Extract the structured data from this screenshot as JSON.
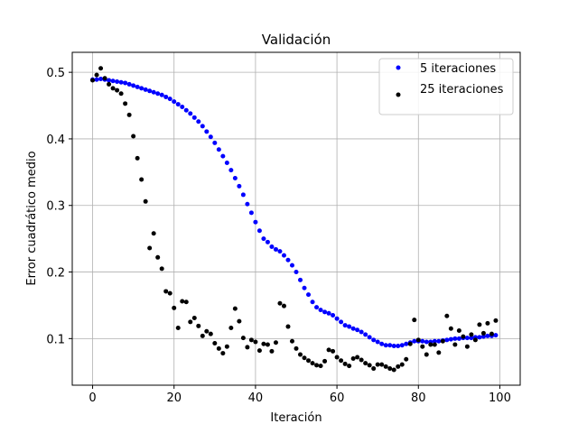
{
  "chart_data": {
    "type": "scatter",
    "title": "Validación",
    "xlabel": "Iteración",
    "ylabel": "Error cuadrático medio",
    "xlim": [
      -5,
      105
    ],
    "ylim": [
      0.03,
      0.53
    ],
    "xticks": [
      0,
      20,
      40,
      60,
      80,
      100
    ],
    "yticks": [
      0.1,
      0.2,
      0.3,
      0.4,
      0.5
    ],
    "grid": true,
    "legend": "top-right",
    "series": [
      {
        "name": "5 iteraciones",
        "color": "#0000ff",
        "x": [
          0,
          1,
          2,
          3,
          4,
          5,
          6,
          7,
          8,
          9,
          10,
          11,
          12,
          13,
          14,
          15,
          16,
          17,
          18,
          19,
          20,
          21,
          22,
          23,
          24,
          25,
          26,
          27,
          28,
          29,
          30,
          31,
          32,
          33,
          34,
          35,
          36,
          37,
          38,
          39,
          40,
          41,
          42,
          43,
          44,
          45,
          46,
          47,
          48,
          49,
          50,
          51,
          52,
          53,
          54,
          55,
          56,
          57,
          58,
          59,
          60,
          61,
          62,
          63,
          64,
          65,
          66,
          67,
          68,
          69,
          70,
          71,
          72,
          73,
          74,
          75,
          76,
          77,
          78,
          79,
          80,
          81,
          82,
          83,
          84,
          85,
          86,
          87,
          88,
          89,
          90,
          91,
          92,
          93,
          94,
          95,
          96,
          97,
          98,
          99
        ],
        "y": [
          0.489,
          0.489,
          0.49,
          0.489,
          0.488,
          0.487,
          0.486,
          0.485,
          0.484,
          0.482,
          0.48,
          0.478,
          0.476,
          0.474,
          0.472,
          0.47,
          0.468,
          0.466,
          0.463,
          0.46,
          0.456,
          0.452,
          0.448,
          0.443,
          0.438,
          0.432,
          0.426,
          0.419,
          0.411,
          0.403,
          0.394,
          0.384,
          0.374,
          0.364,
          0.353,
          0.341,
          0.329,
          0.316,
          0.302,
          0.289,
          0.275,
          0.262,
          0.25,
          0.245,
          0.238,
          0.234,
          0.231,
          0.225,
          0.218,
          0.21,
          0.2,
          0.188,
          0.176,
          0.166,
          0.155,
          0.147,
          0.143,
          0.14,
          0.138,
          0.135,
          0.13,
          0.125,
          0.12,
          0.118,
          0.115,
          0.113,
          0.11,
          0.106,
          0.102,
          0.098,
          0.095,
          0.092,
          0.09,
          0.09,
          0.089,
          0.089,
          0.09,
          0.092,
          0.094,
          0.096,
          0.096,
          0.096,
          0.095,
          0.095,
          0.096,
          0.096,
          0.097,
          0.098,
          0.099,
          0.1,
          0.1,
          0.101,
          0.101,
          0.101,
          0.102,
          0.102,
          0.103,
          0.104,
          0.104,
          0.105
        ]
      },
      {
        "name": "25 iteraciones",
        "color": "#000000",
        "x": [
          0,
          1,
          2,
          3,
          4,
          5,
          6,
          7,
          8,
          9,
          10,
          11,
          12,
          13,
          14,
          15,
          16,
          17,
          18,
          19,
          20,
          21,
          22,
          23,
          24,
          25,
          26,
          27,
          28,
          29,
          30,
          31,
          32,
          33,
          34,
          35,
          36,
          37,
          38,
          39,
          40,
          41,
          42,
          43,
          44,
          45,
          46,
          47,
          48,
          49,
          50,
          51,
          52,
          53,
          54,
          55,
          56,
          57,
          58,
          59,
          60,
          61,
          62,
          63,
          64,
          65,
          66,
          67,
          68,
          69,
          70,
          71,
          72,
          73,
          74,
          75,
          76,
          77,
          78,
          79,
          80,
          81,
          82,
          83,
          84,
          85,
          86,
          87,
          88,
          89,
          90,
          91,
          92,
          93,
          94,
          95,
          96,
          97,
          98,
          99
        ],
        "y": [
          0.488,
          0.496,
          0.506,
          0.491,
          0.482,
          0.476,
          0.473,
          0.468,
          0.453,
          0.436,
          0.404,
          0.371,
          0.339,
          0.306,
          0.236,
          0.258,
          0.222,
          0.205,
          0.171,
          0.168,
          0.146,
          0.116,
          0.156,
          0.155,
          0.125,
          0.131,
          0.119,
          0.104,
          0.111,
          0.107,
          0.093,
          0.085,
          0.078,
          0.088,
          0.116,
          0.145,
          0.126,
          0.101,
          0.087,
          0.098,
          0.095,
          0.082,
          0.092,
          0.091,
          0.081,
          0.094,
          0.153,
          0.149,
          0.118,
          0.096,
          0.085,
          0.076,
          0.071,
          0.067,
          0.063,
          0.06,
          0.059,
          0.066,
          0.083,
          0.081,
          0.072,
          0.067,
          0.062,
          0.059,
          0.07,
          0.072,
          0.068,
          0.063,
          0.06,
          0.055,
          0.061,
          0.061,
          0.058,
          0.055,
          0.053,
          0.058,
          0.061,
          0.069,
          0.092,
          0.128,
          0.098,
          0.088,
          0.076,
          0.091,
          0.091,
          0.079,
          0.096,
          0.134,
          0.115,
          0.091,
          0.112,
          0.103,
          0.088,
          0.106,
          0.098,
          0.121,
          0.108,
          0.123,
          0.107,
          0.127
        ]
      }
    ]
  }
}
